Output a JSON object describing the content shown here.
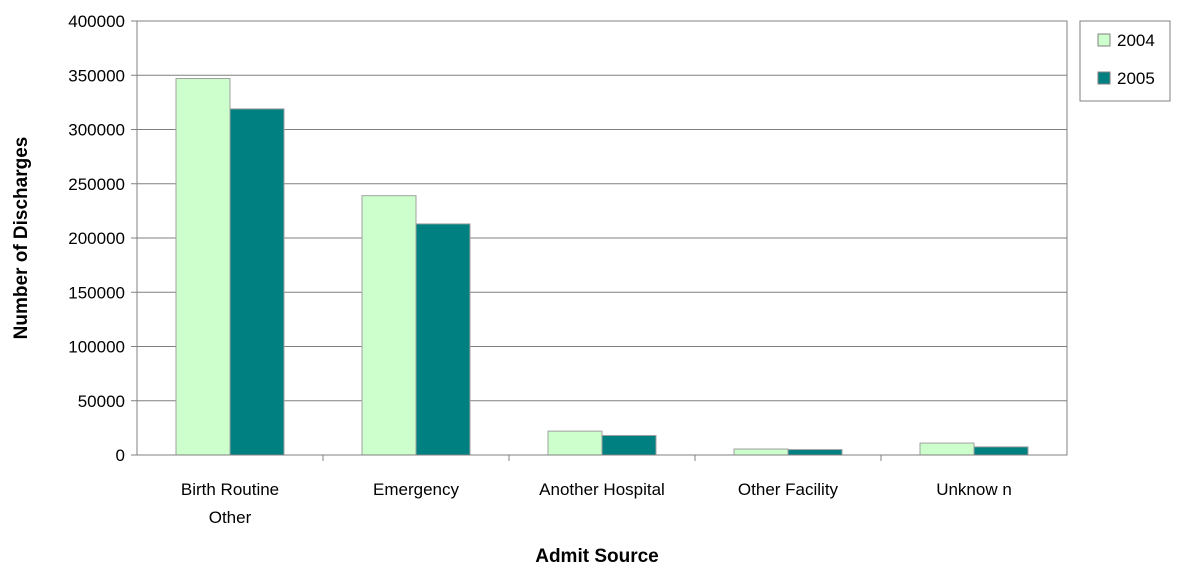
{
  "chart_data": {
    "type": "bar",
    "title": "",
    "xlabel": "Admit Source",
    "ylabel": "Number of Discharges",
    "categories": [
      [
        "Birth Routine",
        "Other"
      ],
      [
        "Emergency"
      ],
      [
        "Another Hospital"
      ],
      [
        "Other Facility"
      ],
      [
        "Unknow n"
      ]
    ],
    "series": [
      {
        "name": "2004",
        "color": "#ccffcc",
        "values": [
          347000,
          239000,
          22000,
          5500,
          11000
        ]
      },
      {
        "name": "2005",
        "color": "#008080",
        "values": [
          319000,
          213000,
          18000,
          5000,
          7500
        ]
      }
    ],
    "ylim": [
      0,
      400000
    ],
    "yticks": [
      "0",
      "50000",
      "100000",
      "150000",
      "200000",
      "250000",
      "300000",
      "350000",
      "400000"
    ],
    "grid": true,
    "legend_position": "top-right"
  }
}
